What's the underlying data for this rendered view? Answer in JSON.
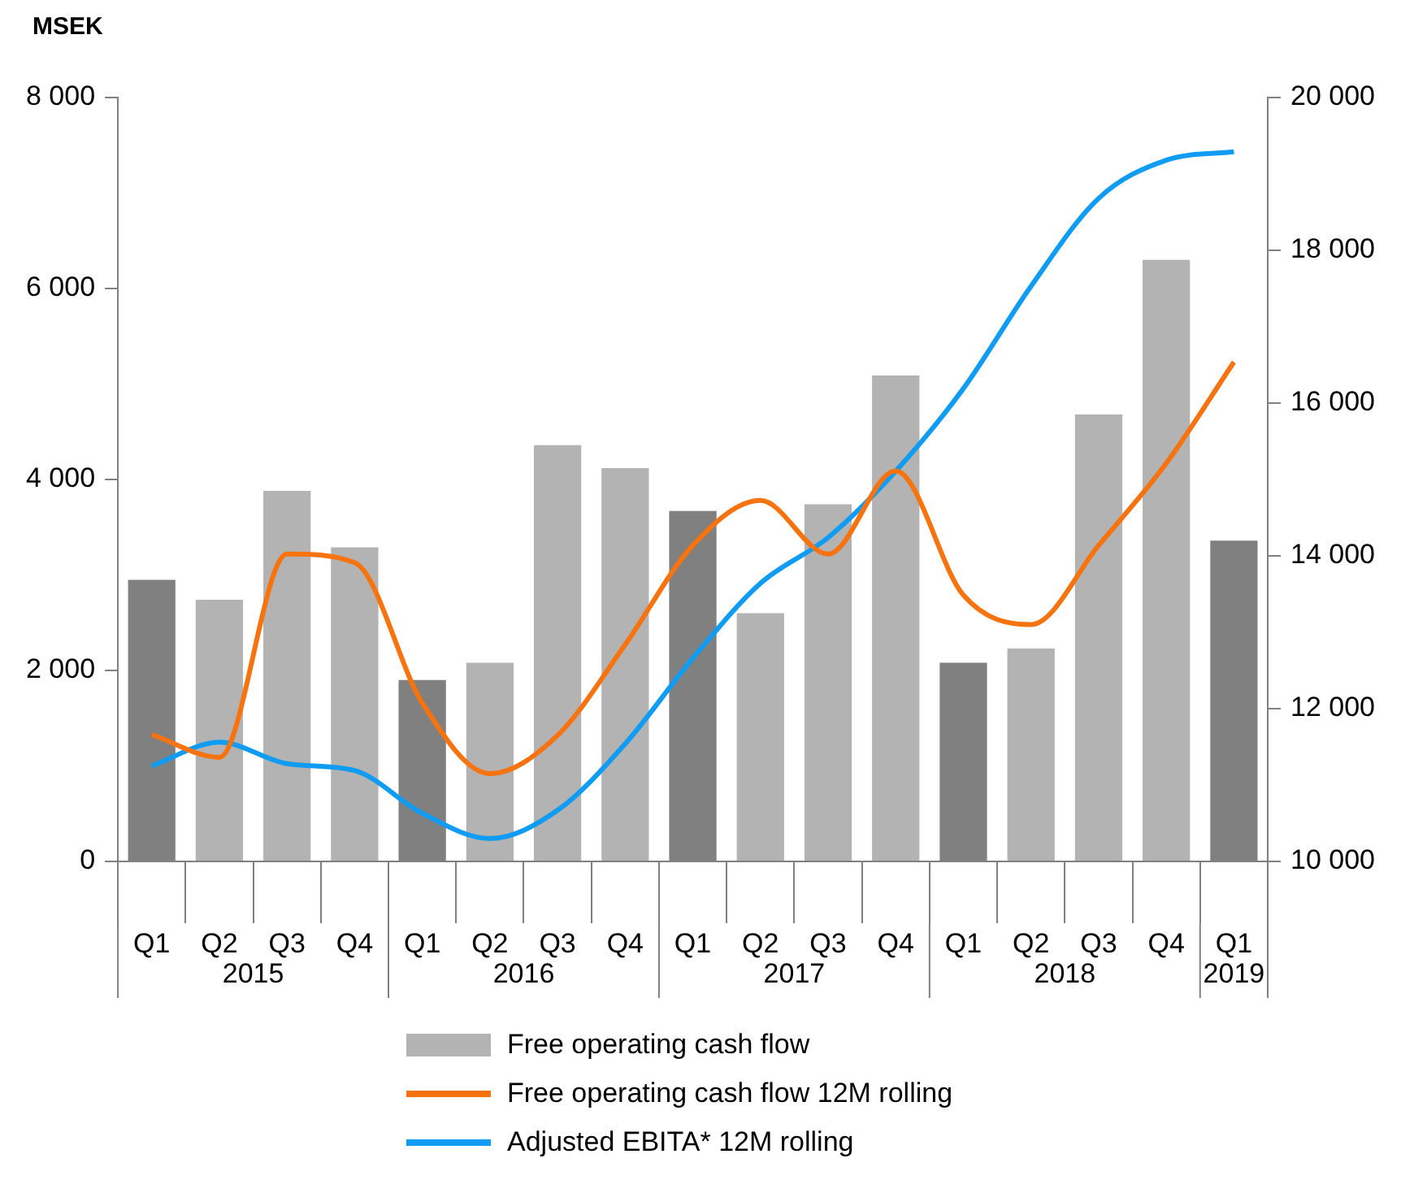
{
  "chart_data": {
    "type": "bar",
    "ylabel": "MSEK",
    "categories": [
      "Q1",
      "Q2",
      "Q3",
      "Q4",
      "Q1",
      "Q2",
      "Q3",
      "Q4",
      "Q1",
      "Q2",
      "Q3",
      "Q4",
      "Q1",
      "Q2",
      "Q3",
      "Q4",
      "Q1"
    ],
    "annotations": [
      "2015",
      "2016",
      "2017",
      "2018",
      "2019"
    ],
    "series": [
      {
        "name": "Free operating cash flow",
        "color": "#b3b3b3",
        "colors": [
          "#808080",
          "#b3b3b3",
          "#b3b3b3",
          "#b3b3b3",
          "#808080",
          "#b3b3b3",
          "#b3b3b3",
          "#b3b3b3",
          "#808080",
          "#b3b3b3",
          "#b3b3b3",
          "#b3b3b3",
          "#808080",
          "#b3b3b3",
          "#b3b3b3",
          "#b3b3b3",
          "#808080"
        ],
        "values": [
          2950,
          2740,
          3880,
          3290,
          1900,
          2080,
          4360,
          4120,
          3670,
          2600,
          3740,
          5090,
          2080,
          2230,
          4680,
          6300,
          3360
        ]
      },
      {
        "name": "Free operating cash flow 12M rolling",
        "type": "line",
        "color": "#f7730f",
        "values": [
          1330,
          1090,
          3220,
          3130,
          1660,
          920,
          1320,
          2270,
          3310,
          3780,
          3220,
          4090,
          2790,
          2480,
          3310,
          4170,
          5230
        ]
      },
      {
        "name": "Adjusted EBITA* 12M rolling",
        "type": "line",
        "axis": "y2",
        "color": "#0f9cf2",
        "values": [
          11250,
          11560,
          11280,
          11190,
          10630,
          10300,
          10670,
          11540,
          12660,
          13640,
          14240,
          15110,
          16190,
          17530,
          18680,
          19180,
          19290
        ]
      }
    ],
    "ylim": [
      0,
      8000
    ],
    "yticks": [
      {
        "value": 0,
        "label": "0"
      },
      {
        "value": 2000,
        "label": "2 000"
      },
      {
        "value": 4000,
        "label": "4 000"
      },
      {
        "value": 6000,
        "label": "6 000"
      },
      {
        "value": 8000,
        "label": "8 000"
      }
    ],
    "y2lim": [
      10000,
      20000
    ],
    "y2ticks": [
      {
        "value": 10000,
        "label": "10 000"
      },
      {
        "value": 12000,
        "label": "12 000"
      },
      {
        "value": 14000,
        "label": "14 000"
      },
      {
        "value": 16000,
        "label": "16 000"
      },
      {
        "value": 18000,
        "label": "18 000"
      },
      {
        "value": 20000,
        "label": "20 000"
      }
    ],
    "grid": false,
    "legend": "bottom",
    "marker": "none",
    "line_style": "solid"
  }
}
